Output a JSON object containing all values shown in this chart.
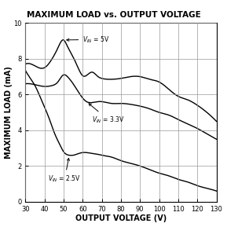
{
  "title": "MAXIMUM LOAD vs. OUTPUT VOLTAGE",
  "xlabel": "OUTPUT VOLTAGE (V)",
  "ylabel": "MAXIMUM LOAD (mA)",
  "xlim": [
    30,
    130
  ],
  "ylim": [
    0,
    10
  ],
  "xticks": [
    30,
    40,
    50,
    60,
    70,
    80,
    90,
    100,
    110,
    120,
    130
  ],
  "yticks": [
    0,
    2,
    4,
    6,
    8,
    10
  ],
  "curve_5V_x": [
    30,
    35,
    40,
    44,
    47,
    50,
    52,
    55,
    58,
    60,
    63,
    65,
    68,
    70,
    75,
    80,
    85,
    90,
    95,
    100,
    105,
    110,
    115,
    120,
    125,
    130
  ],
  "curve_5V_y": [
    7.7,
    7.6,
    7.5,
    8.0,
    8.6,
    9.05,
    8.7,
    8.1,
    7.4,
    7.05,
    7.15,
    7.25,
    7.0,
    6.9,
    6.85,
    6.9,
    7.0,
    7.0,
    6.85,
    6.7,
    6.3,
    5.9,
    5.7,
    5.4,
    5.0,
    4.5
  ],
  "curve_33V_x": [
    30,
    35,
    40,
    44,
    47,
    50,
    52,
    55,
    58,
    60,
    62,
    65,
    68,
    70,
    75,
    80,
    85,
    90,
    95,
    100,
    105,
    110,
    115,
    120,
    125,
    130
  ],
  "curve_33V_y": [
    6.6,
    6.55,
    6.45,
    6.5,
    6.7,
    7.1,
    7.0,
    6.6,
    6.1,
    5.8,
    5.6,
    5.55,
    5.6,
    5.6,
    5.5,
    5.5,
    5.45,
    5.35,
    5.2,
    5.0,
    4.85,
    4.6,
    4.35,
    4.1,
    3.8,
    3.5
  ],
  "curve_25V_x": [
    30,
    32,
    35,
    38,
    40,
    43,
    45,
    48,
    50,
    53,
    55,
    58,
    60,
    62,
    65,
    68,
    70,
    75,
    80,
    85,
    90,
    95,
    100,
    105,
    110,
    115,
    120,
    125,
    130
  ],
  "curve_25V_y": [
    7.35,
    7.0,
    6.5,
    5.8,
    5.3,
    4.5,
    3.9,
    3.2,
    2.8,
    2.6,
    2.6,
    2.7,
    2.75,
    2.75,
    2.7,
    2.65,
    2.6,
    2.5,
    2.3,
    2.15,
    2.0,
    1.8,
    1.6,
    1.45,
    1.25,
    1.1,
    0.9,
    0.75,
    0.6
  ],
  "line_color": "#000000",
  "bg_color": "#ffffff",
  "grid_color": "#999999",
  "title_fontsize": 7.5,
  "label_fontsize": 7,
  "tick_fontsize": 6,
  "ann_5V_tip_x": 50,
  "ann_5V_tip_y": 9.05,
  "ann_5V_txt_x": 60,
  "ann_5V_txt_y": 8.8,
  "ann_33V_tip_x": 62,
  "ann_33V_tip_y": 5.6,
  "ann_33V_txt_x": 65,
  "ann_33V_txt_y": 4.85,
  "ann_25V_tip_x": 53,
  "ann_25V_tip_y": 2.6,
  "ann_25V_txt_x": 42,
  "ann_25V_txt_y": 1.55
}
